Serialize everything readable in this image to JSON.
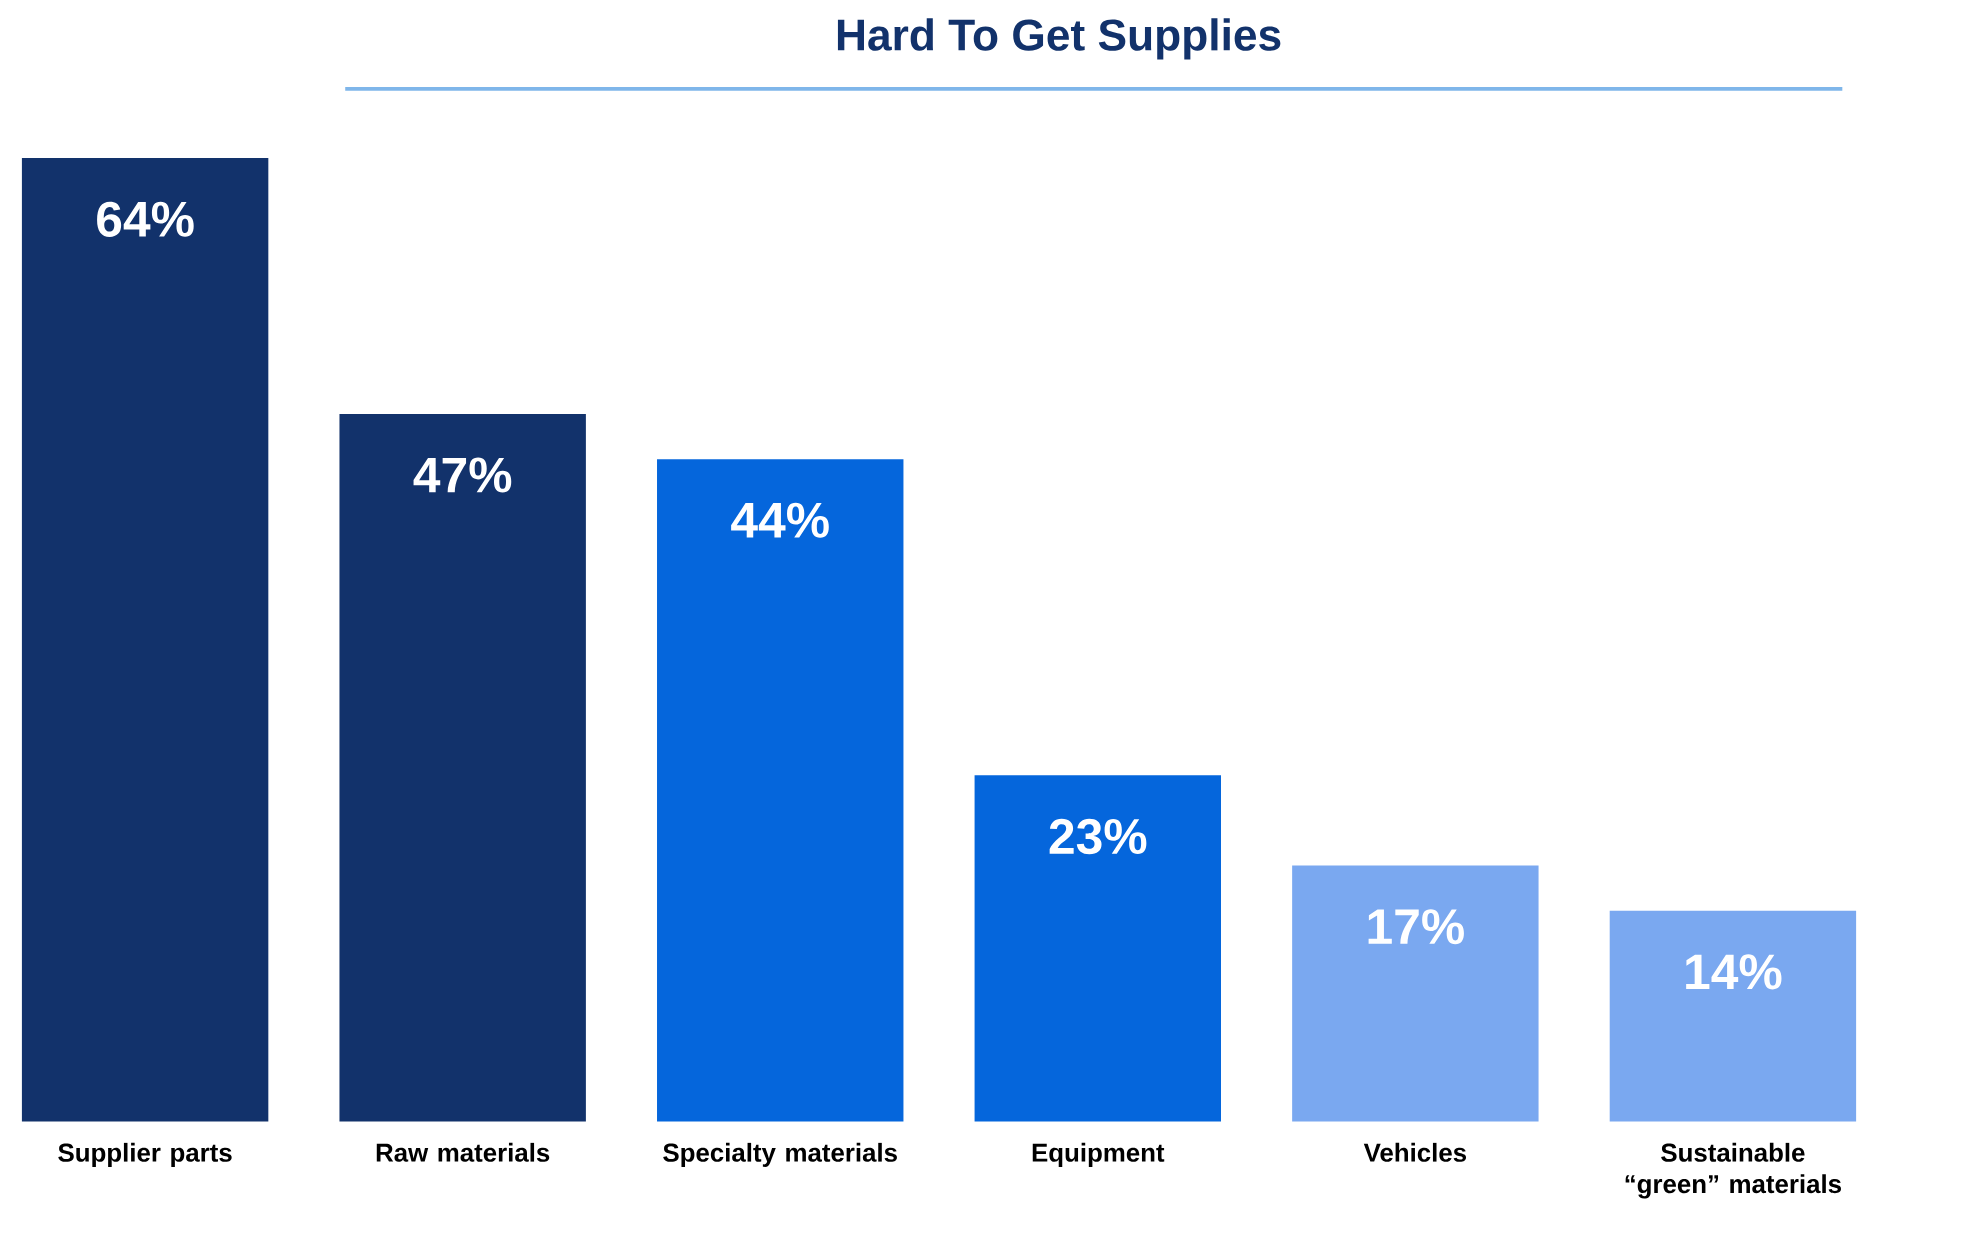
{
  "chart_data": {
    "type": "bar",
    "title": "Hard To Get Supplies",
    "categories": [
      "Supplier parts",
      "Raw materials",
      "Specialty materials",
      "Equipment",
      "Vehicles",
      "Sustainable “green” materials"
    ],
    "values": [
      64,
      47,
      44,
      23,
      17,
      14
    ],
    "value_labels": [
      "64%",
      "47%",
      "44%",
      "23%",
      "17%",
      "14%"
    ],
    "colors": [
      "#12326b",
      "#12326b",
      "#0566dc",
      "#0566dc",
      "#7aa8f0",
      "#7aa8f0"
    ]
  }
}
